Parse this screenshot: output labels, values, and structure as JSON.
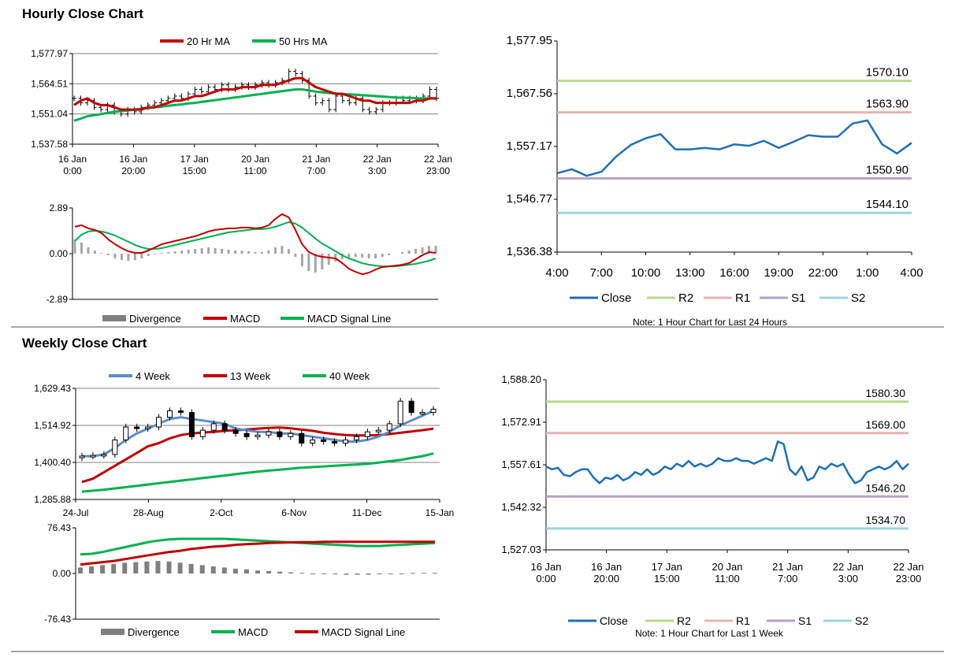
{
  "sections": {
    "hourly_title": "Hourly Close Chart",
    "weekly_title": "Weekly Close Chart"
  },
  "colors": {
    "red": "#c00000",
    "green": "#00b050",
    "blue": "#1f6fb2",
    "steel": "#5b8dc8",
    "gray": "#808080",
    "r2": "#b8d98c",
    "r1": "#e6b3b3",
    "s1": "#b3a2c7",
    "s2": "#9dd3de"
  },
  "chart_data": [
    {
      "id": "hourly_price",
      "type": "line",
      "title": "Hourly Close Chart",
      "legend": [
        "20 Hr MA",
        "50 Hrs MA"
      ],
      "y_ticks": [
        "1,577.97",
        "1,564.51",
        "1,551.04",
        "1,537.58"
      ],
      "ylim": [
        1537.58,
        1577.97
      ],
      "x_ticks": [
        "16 Jan\n0:00",
        "16 Jan\n20:00",
        "17 Jan\n15:00",
        "20 Jan\n11:00",
        "21 Jan\n7:00",
        "22 Jan\n3:00",
        "22 Jan\n23:00"
      ],
      "series": [
        {
          "name": "Close",
          "values": [
            1558,
            1556,
            1557,
            1554,
            1553,
            1555,
            1552,
            1551,
            1553,
            1552,
            1554,
            1555,
            1556,
            1557,
            1558,
            1559,
            1558,
            1560,
            1562,
            1561,
            1563,
            1562,
            1564,
            1562,
            1563,
            1564,
            1563,
            1564,
            1565,
            1564,
            1565,
            1566,
            1570,
            1569,
            1566,
            1559,
            1556,
            1557,
            1553,
            1559,
            1557,
            1556,
            1558,
            1553,
            1552,
            1553,
            1556,
            1556,
            1558,
            1557,
            1558,
            1557,
            1559,
            1562,
            1558
          ]
        },
        {
          "name": "20 Hr MA",
          "values": [
            1555,
            1557,
            1558,
            1556,
            1555,
            1555,
            1554,
            1553,
            1553,
            1553,
            1553,
            1554,
            1554,
            1555,
            1556,
            1557,
            1557,
            1558,
            1559,
            1559,
            1560,
            1561,
            1562,
            1562,
            1562,
            1563,
            1563,
            1563,
            1564,
            1564,
            1564,
            1565,
            1566,
            1567,
            1567,
            1565,
            1563,
            1562,
            1561,
            1560,
            1560,
            1559,
            1558,
            1557,
            1557,
            1556,
            1556,
            1556,
            1556,
            1556,
            1556,
            1557,
            1557,
            1558,
            1558
          ]
        },
        {
          "name": "50 Hrs MA",
          "values": [
            1548,
            1549,
            1550,
            1550.5,
            1551,
            1551.5,
            1552,
            1552.3,
            1552.6,
            1553,
            1553.3,
            1553.6,
            1554,
            1554.3,
            1554.7,
            1555,
            1555.3,
            1555.7,
            1556,
            1556.4,
            1556.8,
            1557.2,
            1557.6,
            1558,
            1558.4,
            1558.8,
            1559.2,
            1559.6,
            1560,
            1560.4,
            1560.8,
            1561.2,
            1561.6,
            1562,
            1562,
            1561.5,
            1561,
            1560.7,
            1560.4,
            1560.2,
            1560,
            1559.8,
            1559.6,
            1559.4,
            1559.2,
            1559,
            1558.8,
            1558.6,
            1558.4,
            1558.3,
            1558.2,
            1558.1,
            1558,
            1558,
            1558
          ]
        }
      ]
    },
    {
      "id": "hourly_macd",
      "type": "line",
      "legend": [
        "Divergence",
        "MACD",
        "MACD Signal Line"
      ],
      "y_ticks": [
        "2.89",
        "0.00",
        "-2.89"
      ],
      "ylim": [
        -2.89,
        2.89
      ],
      "series": [
        {
          "name": "Divergence",
          "values": [
            0.9,
            0.7,
            0.4,
            0.2,
            0.05,
            -0.1,
            -0.3,
            -0.4,
            -0.45,
            -0.4,
            -0.3,
            -0.15,
            -0.05,
            0.05,
            0.1,
            0.15,
            0.2,
            0.25,
            0.3,
            0.35,
            0.4,
            0.35,
            0.3,
            0.25,
            0.2,
            0.2,
            0.15,
            0.1,
            0.1,
            0.2,
            0.4,
            0.5,
            0.3,
            -0.2,
            -0.8,
            -1.1,
            -1.2,
            -1.0,
            -0.7,
            -0.5,
            -0.35,
            -0.25,
            -0.2,
            -0.25,
            -0.3,
            -0.3,
            -0.2,
            -0.1,
            0.0,
            0.1,
            0.2,
            0.3,
            0.4,
            0.5,
            0.5
          ]
        },
        {
          "name": "MACD",
          "values": [
            1.7,
            1.8,
            1.6,
            1.5,
            1.3,
            0.9,
            0.6,
            0.35,
            0.15,
            0.05,
            0.05,
            0.2,
            0.4,
            0.6,
            0.7,
            0.8,
            0.9,
            1.0,
            1.1,
            1.25,
            1.4,
            1.5,
            1.55,
            1.6,
            1.6,
            1.65,
            1.65,
            1.6,
            1.65,
            1.8,
            2.2,
            2.5,
            2.3,
            1.5,
            0.6,
            0.1,
            -0.1,
            -0.2,
            -0.25,
            -0.3,
            -0.6,
            -0.95,
            -1.15,
            -1.3,
            -1.2,
            -1.0,
            -0.85,
            -0.8,
            -0.75,
            -0.7,
            -0.6,
            -0.35,
            -0.1,
            0.1,
            0.05
          ]
        },
        {
          "name": "MACD Signal Line",
          "values": [
            0.8,
            1.2,
            1.4,
            1.45,
            1.4,
            1.3,
            1.15,
            0.95,
            0.75,
            0.55,
            0.4,
            0.3,
            0.3,
            0.35,
            0.45,
            0.55,
            0.65,
            0.75,
            0.85,
            0.95,
            1.05,
            1.15,
            1.25,
            1.35,
            1.4,
            1.45,
            1.5,
            1.55,
            1.55,
            1.6,
            1.7,
            1.85,
            2.0,
            1.9,
            1.65,
            1.3,
            0.95,
            0.65,
            0.4,
            0.15,
            -0.1,
            -0.3,
            -0.45,
            -0.6,
            -0.7,
            -0.75,
            -0.8,
            -0.8,
            -0.8,
            -0.75,
            -0.7,
            -0.65,
            -0.55,
            -0.45,
            -0.3
          ]
        }
      ]
    },
    {
      "id": "hourly_pivot",
      "type": "line",
      "y_ticks": [
        "1,577.95",
        "1,567.56",
        "1,557.17",
        "1,546.77",
        "1,536.38"
      ],
      "ylim": [
        1536.38,
        1577.95
      ],
      "x_ticks": [
        "4:00",
        "7:00",
        "10:00",
        "13:00",
        "16:00",
        "19:00",
        "22:00",
        "1:00",
        "4:00"
      ],
      "legend": [
        "Close",
        "R2",
        "R1",
        "S1",
        "S2"
      ],
      "levels": [
        {
          "name": "R2",
          "value": 1570.1,
          "label": "1570.10"
        },
        {
          "name": "R1",
          "value": 1563.9,
          "label": "1563.90"
        },
        {
          "name": "S1",
          "value": 1550.9,
          "label": "1550.90"
        },
        {
          "name": "S2",
          "value": 1544.1,
          "label": "1544.10"
        }
      ],
      "note": "Note: 1 Hour Chart for Last 24 Hours",
      "series": [
        {
          "name": "Close",
          "values": [
            1551.9,
            1552.7,
            1551.4,
            1552.2,
            1555.2,
            1557.5,
            1558.8,
            1559.6,
            1556.6,
            1556.6,
            1556.9,
            1556.6,
            1557.6,
            1557.3,
            1558.3,
            1556.9,
            1558.1,
            1559.4,
            1559.1,
            1559.1,
            1561.7,
            1562.3,
            1557.6,
            1555.8,
            1557.9
          ]
        }
      ]
    },
    {
      "id": "weekly_price",
      "type": "line",
      "title": "Weekly Close Chart",
      "legend": [
        "4 Week",
        "13 Week",
        "40 Week"
      ],
      "y_ticks": [
        "1,629.43",
        "1,514.92",
        "1,400.40",
        "1,285.88"
      ],
      "ylim": [
        1285.88,
        1629.43
      ],
      "x_ticks": [
        "24-Jul",
        "28-Aug",
        "2-Oct",
        "6-Nov",
        "11-Dec",
        "15-Jan"
      ],
      "series": [
        {
          "name": "Close",
          "values": [
            1420,
            1422,
            1425,
            1470,
            1510,
            1505,
            1510,
            1540,
            1560,
            1555,
            1480,
            1500,
            1520,
            1500,
            1490,
            1480,
            1485,
            1495,
            1480,
            1490,
            1460,
            1470,
            1465,
            1460,
            1470,
            1480,
            1495,
            1500,
            1520,
            1590,
            1555,
            1555,
            1565
          ]
        },
        {
          "name": "4 Week",
          "values": [
            1420,
            1420,
            1425,
            1445,
            1470,
            1490,
            1505,
            1520,
            1535,
            1540,
            1535,
            1530,
            1525,
            1520,
            1505,
            1500,
            1495,
            1495,
            1490,
            1490,
            1485,
            1480,
            1475,
            1470,
            1465,
            1465,
            1470,
            1480,
            1495,
            1515,
            1530,
            1545,
            1560
          ]
        },
        {
          "name": "13 Week",
          "values": [
            1340,
            1350,
            1370,
            1390,
            1410,
            1430,
            1450,
            1460,
            1475,
            1485,
            1490,
            1493,
            1495,
            1498,
            1500,
            1502,
            1505,
            1507,
            1508,
            1506,
            1502,
            1498,
            1492,
            1488,
            1485,
            1484,
            1484,
            1485,
            1488,
            1492,
            1496,
            1500,
            1505
          ]
        },
        {
          "name": "40 Week",
          "values": [
            1310,
            1313,
            1316,
            1320,
            1324,
            1328,
            1332,
            1336,
            1340,
            1344,
            1348,
            1352,
            1356,
            1360,
            1364,
            1368,
            1372,
            1375,
            1378,
            1381,
            1384,
            1386,
            1388,
            1390,
            1392,
            1394,
            1396,
            1400,
            1404,
            1408,
            1414,
            1420,
            1428
          ]
        }
      ]
    },
    {
      "id": "weekly_macd",
      "type": "line",
      "legend": [
        "Divergence",
        "MACD",
        "MACD Signal Line"
      ],
      "y_ticks": [
        "76.43",
        "0.00",
        "-76.43"
      ],
      "ylim": [
        -76.43,
        76.43
      ],
      "series": [
        {
          "name": "Divergence",
          "values": [
            10,
            12,
            14,
            16,
            18,
            19,
            20,
            21,
            20,
            18,
            16,
            14,
            12,
            10,
            8,
            7,
            5,
            4,
            3,
            2,
            1,
            0,
            -1,
            -1,
            -2,
            -2,
            -2,
            -1,
            -1,
            0,
            1,
            1,
            1
          ]
        },
        {
          "name": "MACD",
          "values": [
            32,
            33,
            36,
            40,
            44,
            48,
            52,
            55,
            57,
            58,
            58,
            58,
            58,
            58,
            57,
            56,
            55,
            54,
            53,
            52,
            51,
            50,
            49,
            48,
            47,
            46,
            46,
            46,
            47,
            48,
            49,
            50,
            51
          ]
        },
        {
          "name": "MACD Signal Line",
          "values": [
            15,
            17,
            19,
            21,
            24,
            27,
            30,
            33,
            36,
            38,
            41,
            43,
            45,
            46,
            48,
            49,
            50,
            51,
            51.5,
            52,
            52.5,
            52.5,
            53,
            53,
            53,
            53,
            53,
            53,
            53,
            53,
            53,
            53,
            53
          ]
        }
      ]
    },
    {
      "id": "weekly_pivot",
      "type": "line",
      "y_ticks": [
        "1,588.20",
        "1,572.91",
        "1,557.61",
        "1,542.32",
        "1,527.03"
      ],
      "ylim": [
        1527.03,
        1588.2
      ],
      "x_ticks": [
        "16 Jan\n0:00",
        "16 Jan\n20:00",
        "17 Jan\n15:00",
        "20 Jan\n11:00",
        "21 Jan\n7:00",
        "22 Jan\n3:00",
        "22 Jan\n23:00"
      ],
      "legend": [
        "Close",
        "R2",
        "R1",
        "S1",
        "S2"
      ],
      "levels": [
        {
          "name": "R2",
          "value": 1580.3,
          "label": "1580.30"
        },
        {
          "name": "R1",
          "value": 1569.0,
          "label": "1569.00"
        },
        {
          "name": "S1",
          "value": 1546.2,
          "label": "1546.20"
        },
        {
          "name": "S2",
          "value": 1534.7,
          "label": "1534.70"
        }
      ],
      "note": "Note: 1 Hour Chart for Last 1 Week",
      "series": [
        {
          "name": "Close",
          "values": [
            1557,
            1556,
            1556.5,
            1554,
            1553.5,
            1555,
            1556,
            1556,
            1553,
            1551,
            1553,
            1552.5,
            1554,
            1552,
            1553,
            1555,
            1554,
            1556,
            1554,
            1555,
            1557,
            1556,
            1558,
            1557,
            1559,
            1557,
            1558,
            1557,
            1558,
            1560,
            1559,
            1559,
            1560,
            1559,
            1559,
            1558,
            1559,
            1560,
            1559,
            1566,
            1565,
            1556,
            1554,
            1557,
            1552,
            1553,
            1557,
            1556,
            1558,
            1557,
            1558,
            1554,
            1551,
            1552,
            1555,
            1556,
            1557,
            1556,
            1557,
            1559,
            1556,
            1558
          ]
        }
      ]
    }
  ]
}
